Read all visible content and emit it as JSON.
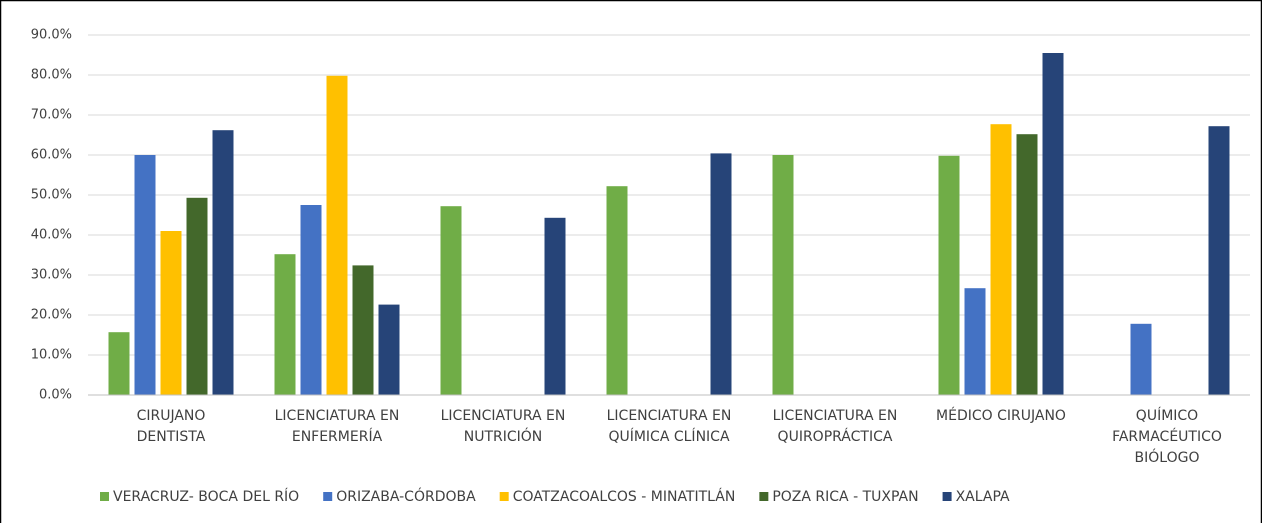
{
  "chart_data": {
    "type": "bar",
    "categories": [
      [
        "CIRUJANO",
        "DENTISTA"
      ],
      [
        "LICENCIATURA EN",
        "ENFERMERÍA"
      ],
      [
        "LICENCIATURA EN",
        "NUTRICIÓN"
      ],
      [
        "LICENCIATURA EN",
        "QUÍMICA CLÍNICA"
      ],
      [
        "LICENCIATURA EN",
        "QUIROPRÁCTICA"
      ],
      [
        "MÉDICO CIRUJANO"
      ],
      [
        "QUÍMICO",
        "FARMACÉUTICO",
        "BIÓLOGO"
      ]
    ],
    "series": [
      {
        "name": "VERACRUZ- BOCA DEL RÍO",
        "color": "#70ad47",
        "values": [
          15.7,
          35.2,
          47.2,
          52.2,
          60.0,
          59.8,
          null
        ]
      },
      {
        "name": "ORIZABA-CÓRDOBA",
        "color": "#4472c4",
        "values": [
          60.0,
          47.5,
          null,
          null,
          null,
          26.7,
          17.8
        ]
      },
      {
        "name": "COATZACOALCOS - MINATITLÁN",
        "color": "#ffc000",
        "values": [
          41.0,
          79.8,
          null,
          null,
          null,
          67.7,
          null
        ]
      },
      {
        "name": "POZA RICA - TUXPAN",
        "color": "#43682b",
        "values": [
          49.3,
          32.4,
          null,
          null,
          null,
          65.2,
          null
        ]
      },
      {
        "name": "XALAPA",
        "color": "#264478",
        "values": [
          66.2,
          22.6,
          44.3,
          60.4,
          null,
          85.5,
          67.2
        ]
      }
    ],
    "ylim": [
      0,
      90
    ],
    "yticks": [
      {
        "value": 0,
        "label": "0.0%"
      },
      {
        "value": 10,
        "label": "10.0%"
      },
      {
        "value": 20,
        "label": "20.0%"
      },
      {
        "value": 30,
        "label": "30.0%"
      },
      {
        "value": 40,
        "label": "40.0%"
      },
      {
        "value": 50,
        "label": "50.0%"
      },
      {
        "value": 60,
        "label": "60.0%"
      },
      {
        "value": 70,
        "label": "70.0%"
      },
      {
        "value": 80,
        "label": "80.0%"
      },
      {
        "value": 90,
        "label": "90.0%"
      }
    ],
    "grid": true,
    "legend": "bottom"
  }
}
